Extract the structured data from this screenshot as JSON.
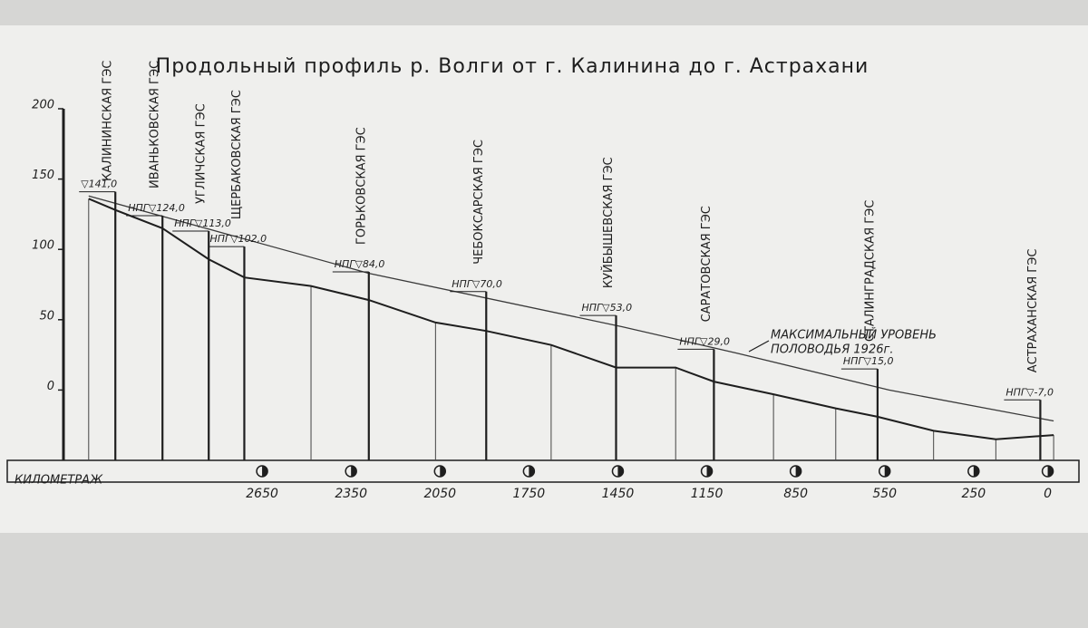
{
  "chart_data": {
    "type": "line",
    "title": "Продольный профиль р. Волги от г. Калинина до г. Астрахани",
    "x_label": "КИЛОМЕТРАЖ",
    "xlim": [
      3320,
      -90
    ],
    "xticks": [
      2650,
      2350,
      2050,
      1750,
      1450,
      1150,
      850,
      550,
      250,
      0
    ],
    "ylim": [
      -50,
      200
    ],
    "yticks": [
      0,
      50,
      100,
      150,
      200
    ],
    "series": [
      {
        "color": "#1e1e1e",
        "x": [
          3235,
          3145,
          2986,
          2830,
          2710,
          2485,
          2290,
          2065,
          1894,
          1675,
          1456,
          1255,
          1126,
          925,
          715,
          574,
          385,
          175,
          -20
        ],
        "values": [
          136,
          128,
          115,
          93,
          80,
          74,
          64,
          48,
          42,
          32,
          16,
          16,
          6,
          -3,
          -13,
          -19,
          -29,
          -35,
          -32
        ]
      },
      {
        "color": "#3a3a3a",
        "x": [
          3235,
          2290,
          1435,
          1045,
          535,
          -20
        ],
        "values": [
          138,
          83,
          45,
          26,
          0,
          -22
        ]
      }
    ],
    "flood_annotation": [
      "МАКСИМАЛЬНЫЙ УРОВЕНЬ",
      "ПОЛОВОДЬЯ 1926г."
    ],
    "dams": {
      "names": [
        "КАЛИНИНСКАЯ ГЭС",
        "ИВАНЬКОВСКАЯ ГЭС",
        "УГЛИЧСКАЯ ГЭС",
        "ЩЕРБАКОВСКАЯ ГЭС",
        "ГОРЬКОВСКАЯ ГЭС",
        "ЧЕБОКСАРСКАЯ ГЭС",
        "КУЙБЫШЕВСКАЯ ГЭС",
        "САРАТОВСКАЯ ГЭС",
        "СТАЛИНГРАДСКАЯ ГЭС",
        "АСТРАХАНСКАЯ ГЭС"
      ],
      "x": [
        3145,
        2986,
        2830,
        2710,
        2290,
        1894,
        1456,
        1126,
        574,
        25
      ],
      "values": [
        141,
        124,
        113,
        102,
        84,
        70,
        53,
        29,
        15,
        -7
      ],
      "value_labels": [
        "▽141,0",
        "НПГ▽124,0",
        "НПГ▽113,0",
        "НПГ▽102,0",
        "НПГ▽84,0",
        "НПГ▽70,0",
        "НПГ▽53,0",
        "НПГ▽29,0",
        "НПГ▽15,0",
        "НПГ▽-7,0"
      ]
    }
  }
}
